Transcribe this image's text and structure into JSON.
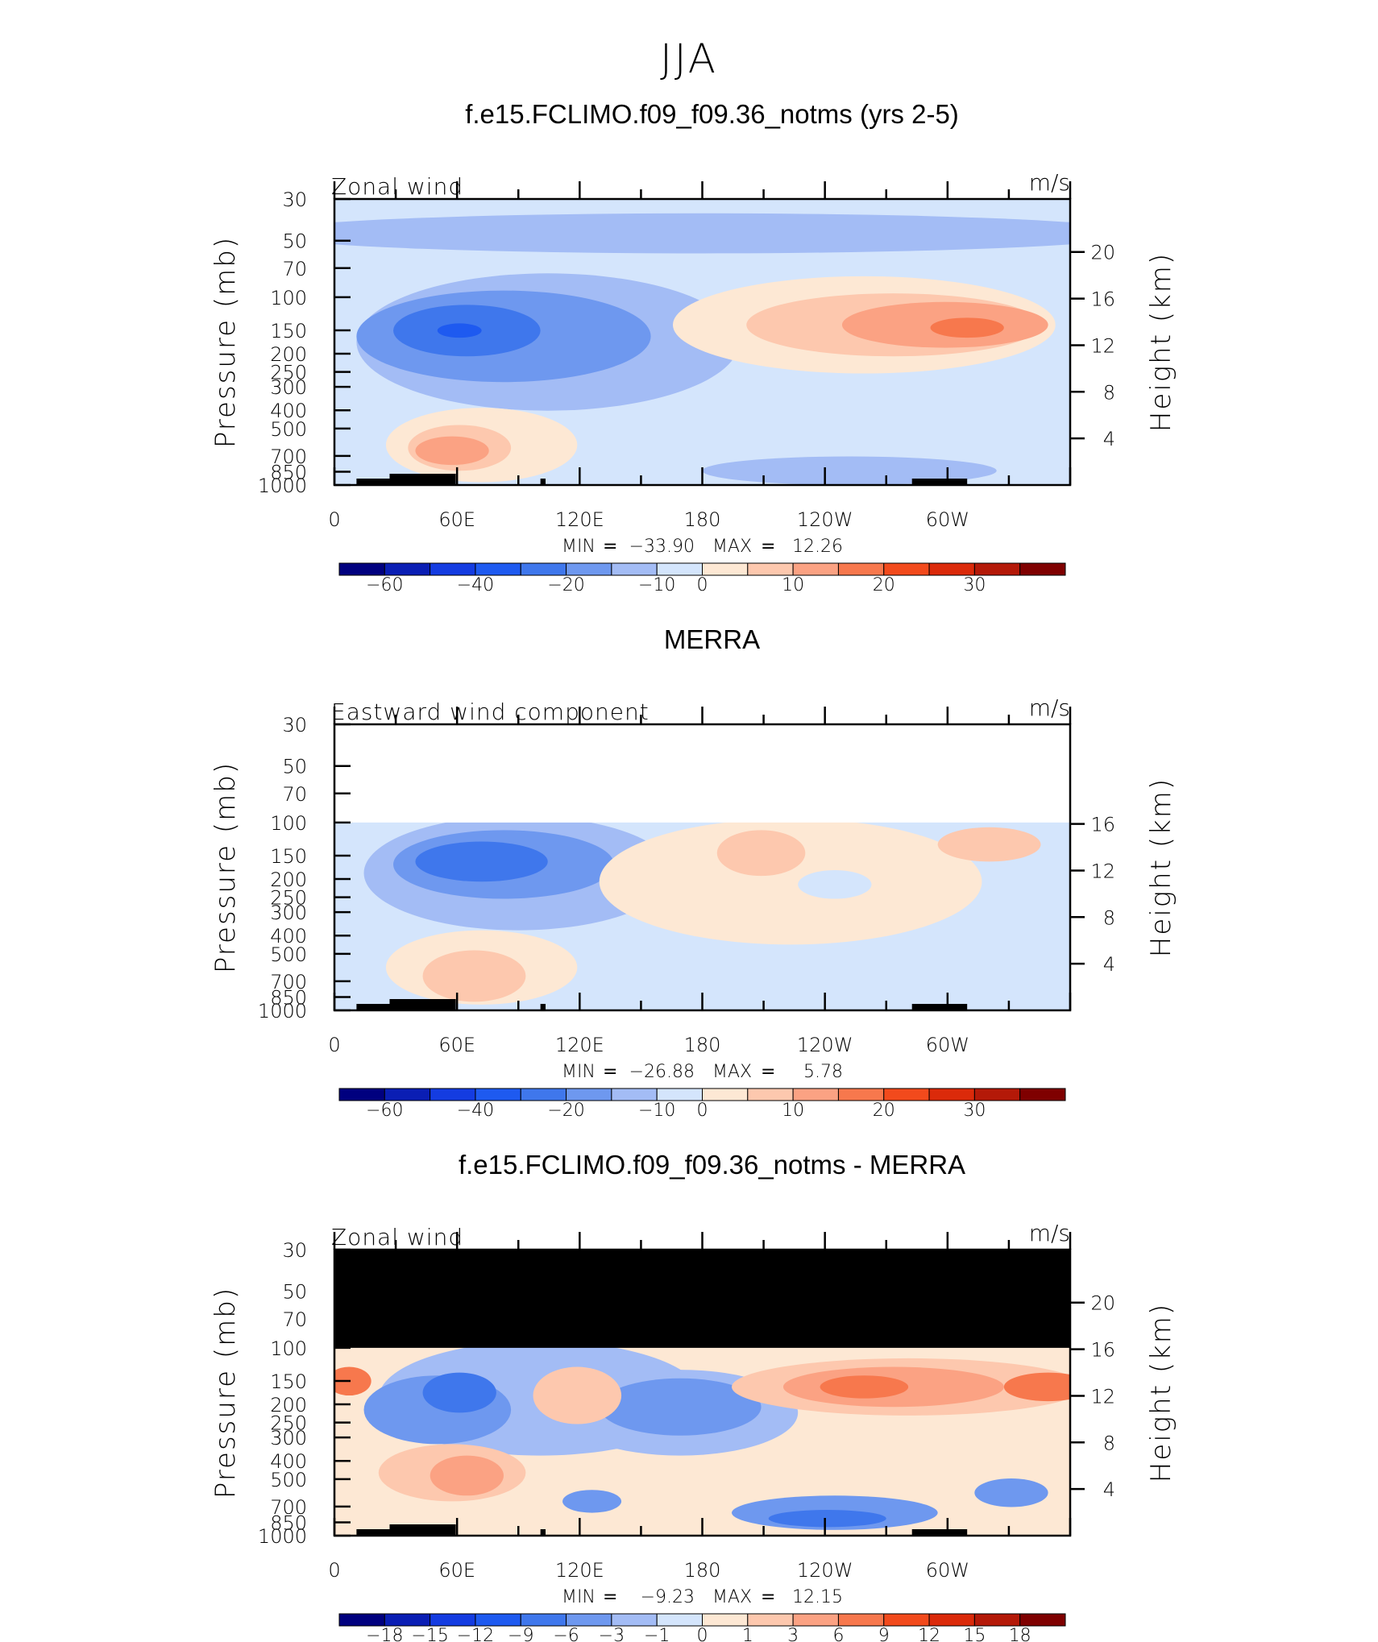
{
  "figure_title": "JJA",
  "chart_data": [
    {
      "type": "heatmap",
      "title": "f.e15.FCLIMO.f09_f09.36_notms (yrs 2-5)",
      "variable_label": "Zonal wind",
      "units_label": "m/s",
      "ylabel": "Pressure (mb)",
      "ylabel2": "Height (km)",
      "x_tick_labels": [
        "0",
        "60E",
        "120E",
        "180",
        "120W",
        "60W"
      ],
      "y_tick_labels": [
        "30",
        "50",
        "70",
        "100",
        "150",
        "200",
        "250",
        "300",
        "400",
        "500",
        "700",
        "850",
        "1000"
      ],
      "y2_tick_labels": [
        "20",
        "16",
        "12",
        "8",
        "4"
      ],
      "stats": {
        "min_label": "MIN",
        "min_value": "−33.90",
        "max_label": "MAX",
        "max_value": "12.26"
      },
      "min": -33.9,
      "max": 12.26,
      "colorbar": {
        "colors": [
          "#00007f",
          "#0a1eb4",
          "#143ce1",
          "#1e5af0",
          "#3f77ec",
          "#6e98ef",
          "#a3bcf5",
          "#d4e5fc",
          "#fde8d4",
          "#fdc8ae",
          "#fba283",
          "#f7784d",
          "#f24a1c",
          "#db2a0a",
          "#b41908",
          "#7f0000"
        ],
        "tick_labels": [
          "−60",
          "−40",
          "−20",
          "−10",
          "0",
          "10",
          "20",
          "30"
        ]
      }
    },
    {
      "type": "heatmap",
      "title": "MERRA",
      "variable_label": "Eastward wind component",
      "units_label": "m/s",
      "ylabel": "Pressure (mb)",
      "ylabel2": "Height (km)",
      "x_tick_labels": [
        "0",
        "60E",
        "120E",
        "180",
        "120W",
        "60W"
      ],
      "y_tick_labels": [
        "30",
        "50",
        "70",
        "100",
        "150",
        "200",
        "250",
        "300",
        "400",
        "500",
        "700",
        "850",
        "1000"
      ],
      "y2_tick_labels": [
        "16",
        "12",
        "8",
        "4"
      ],
      "stats": {
        "min_label": "MIN",
        "min_value": "−26.88",
        "max_label": "MAX",
        "max_value": "5.78"
      },
      "min": -26.88,
      "max": 5.78,
      "colorbar": {
        "colors": [
          "#00007f",
          "#0a1eb4",
          "#143ce1",
          "#1e5af0",
          "#3f77ec",
          "#6e98ef",
          "#a3bcf5",
          "#d4e5fc",
          "#fde8d4",
          "#fdc8ae",
          "#fba283",
          "#f7784d",
          "#f24a1c",
          "#db2a0a",
          "#b41908",
          "#7f0000"
        ],
        "tick_labels": [
          "−60",
          "−40",
          "−20",
          "−10",
          "0",
          "10",
          "20",
          "30"
        ]
      }
    },
    {
      "type": "heatmap",
      "title": "f.e15.FCLIMO.f09_f09.36_notms - MERRA",
      "variable_label": "Zonal wind",
      "units_label": "m/s",
      "ylabel": "Pressure (mb)",
      "ylabel2": "Height (km)",
      "x_tick_labels": [
        "0",
        "60E",
        "120E",
        "180",
        "120W",
        "60W"
      ],
      "y_tick_labels": [
        "30",
        "50",
        "70",
        "100",
        "150",
        "200",
        "250",
        "300",
        "400",
        "500",
        "700",
        "850",
        "1000"
      ],
      "y2_tick_labels": [
        "20",
        "16",
        "12",
        "8",
        "4"
      ],
      "stats": {
        "min_label": "MIN",
        "min_value": "−9.23",
        "max_label": "MAX",
        "max_value": "12.15"
      },
      "min": -9.23,
      "max": 12.15,
      "colorbar": {
        "colors": [
          "#00007f",
          "#0a1eb4",
          "#143ce1",
          "#1e5af0",
          "#3f77ec",
          "#6e98ef",
          "#a3bcf5",
          "#d4e5fc",
          "#fde8d4",
          "#fdc8ae",
          "#fba283",
          "#f7784d",
          "#f24a1c",
          "#db2a0a",
          "#b41908",
          "#7f0000"
        ],
        "tick_labels": [
          "−18",
          "−15",
          "−12",
          "−9",
          "−6",
          "−3",
          "−1",
          "0",
          "1",
          "3",
          "6",
          "9",
          "12",
          "15",
          "18"
        ]
      }
    }
  ]
}
